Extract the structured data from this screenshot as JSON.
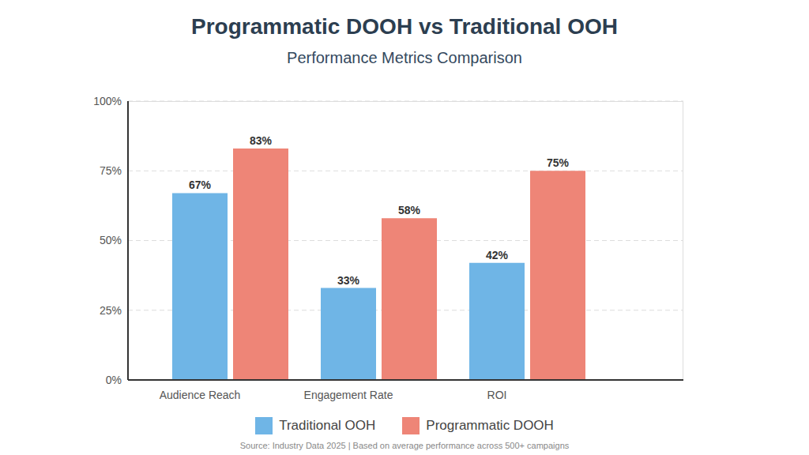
{
  "chart_data": {
    "type": "bar",
    "title": "Programmatic DOOH vs Traditional OOH",
    "subtitle": "Performance Metrics Comparison",
    "categories": [
      "Audience Reach",
      "Engagement Rate",
      "ROI"
    ],
    "series": [
      {
        "name": "Traditional OOH",
        "color": "#6fb5e6",
        "values": [
          67,
          33,
          42
        ],
        "value_labels": [
          "67%",
          "33%",
          "42%"
        ]
      },
      {
        "name": "Programmatic DOOH",
        "color": "#ee8577",
        "values": [
          83,
          58,
          75
        ],
        "value_labels": [
          "83%",
          "58%",
          "75%"
        ]
      }
    ],
    "ylim": [
      0,
      100
    ],
    "yticks": [
      {
        "value": 0,
        "label": "0%"
      },
      {
        "value": 25,
        "label": "25%"
      },
      {
        "value": 50,
        "label": "50%"
      },
      {
        "value": 75,
        "label": "75%"
      },
      {
        "value": 100,
        "label": "100%"
      }
    ],
    "grid": true,
    "legend": "bottom",
    "data_labels": true,
    "annotations": [
      "Source: Industry Data 2025 | Based on average performance across 500+ campaigns"
    ]
  }
}
